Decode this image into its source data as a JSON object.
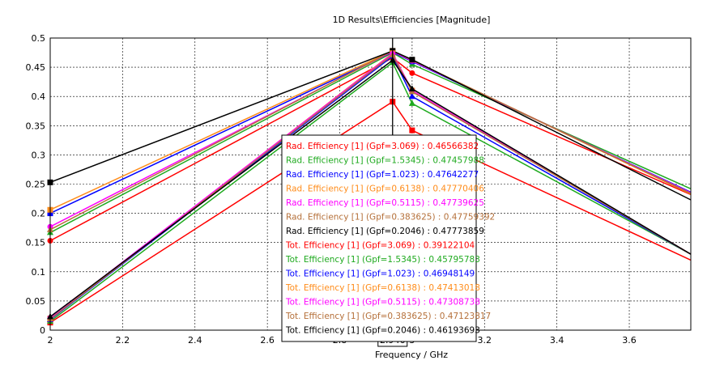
{
  "chart_data": {
    "type": "line",
    "title": "1D Results\\Efficiencies [Magnitude]",
    "xlabel": "Frequency / GHz",
    "ylabel": "",
    "xlim": [
      2,
      3.77
    ],
    "ylim": [
      0,
      0.5
    ],
    "grid": true,
    "x_ticks": [
      "2",
      "2.2",
      "2.4",
      "2.6",
      "2.8",
      "3",
      "3.2",
      "3.4",
      "3.6"
    ],
    "y_ticks": [
      "0",
      "0.05",
      "0.1",
      "0.15",
      "0.2",
      "0.25",
      "0.3",
      "0.35",
      "0.4",
      "0.45",
      "0.5"
    ],
    "marker_x": 2.946,
    "marker_label": "2.946",
    "series": [
      {
        "name": "Rad. Efficiency [1] (Gpf=3.069)",
        "color": "#ff0000",
        "marker": "circle",
        "x": [
          2,
          2.946,
          3,
          3.77
        ],
        "y": [
          0.153,
          0.466,
          0.44,
          0.232
        ],
        "readout": "Rad. Efficiency [1] (Gpf=3.069) : 0.46566382"
      },
      {
        "name": "Rad. Efficiency [1] (Gpf=1.5345)",
        "color": "#1faa1f",
        "marker": "triangle",
        "x": [
          2,
          2.946,
          3,
          3.77
        ],
        "y": [
          0.167,
          0.475,
          0.455,
          0.242
        ],
        "readout": "Rad. Efficiency [1] (Gpf=1.5345) : 0.47457988"
      },
      {
        "name": "Rad. Efficiency [1] (Gpf=1.023)",
        "color": "#0000ff",
        "marker": "square",
        "x": [
          2,
          2.946,
          3,
          3.77
        ],
        "y": [
          0.2,
          0.476,
          0.46,
          0.236
        ],
        "readout": "Rad. Efficiency [1] (Gpf=1.023) : 0.47642277"
      },
      {
        "name": "Rad. Efficiency [1] (Gpf=0.6138)",
        "color": "#ff8c1a",
        "marker": "square",
        "x": [
          2,
          2.946,
          3,
          3.77
        ],
        "y": [
          0.206,
          0.478,
          0.462,
          0.233
        ],
        "readout": "Rad. Efficiency [1] (Gpf=0.6138) : 0.47770406"
      },
      {
        "name": "Rad. Efficiency [1] (Gpf=0.5115)",
        "color": "#ff00ff",
        "marker": "circle",
        "x": [
          2,
          2.946,
          3,
          3.77
        ],
        "y": [
          0.177,
          0.477,
          0.461,
          0.235
        ],
        "readout": "Rad. Efficiency [1] (Gpf=0.5115) : 0.47739625"
      },
      {
        "name": "Rad. Efficiency [1] (Gpf=0.383625)",
        "color": "#b5703a",
        "marker": "triangle",
        "x": [
          2,
          2.946,
          3,
          3.77
        ],
        "y": [
          0.172,
          0.478,
          0.462,
          0.234
        ],
        "readout": "Rad. Efficiency [1] (Gpf=0.383625) : 0.47759392"
      },
      {
        "name": "Rad. Efficiency [1] (Gpf=0.2046)",
        "color": "#000000",
        "marker": "square",
        "x": [
          2,
          2.946,
          3,
          3.77
        ],
        "y": [
          0.253,
          0.478,
          0.463,
          0.223
        ],
        "readout": "Rad. Efficiency [1] (Gpf=0.2046) : 0.47773859"
      },
      {
        "name": "Tot. Efficiency [1] (Gpf=3.069)",
        "color": "#ff0000",
        "marker": "square",
        "x": [
          2,
          2.946,
          3,
          3.77
        ],
        "y": [
          0.013,
          0.391,
          0.342,
          0.12
        ],
        "readout": "Tot. Efficiency [1] (Gpf=3.069) : 0.39122104"
      },
      {
        "name": "Tot. Efficiency [1] (Gpf=1.5345)",
        "color": "#1faa1f",
        "marker": "triangle",
        "x": [
          2,
          2.946,
          3,
          3.77
        ],
        "y": [
          0.015,
          0.458,
          0.388,
          0.13
        ],
        "readout": "Tot. Efficiency [1] (Gpf=1.5345) : 0.45795783"
      },
      {
        "name": "Tot. Efficiency [1] (Gpf=1.023)",
        "color": "#0000ff",
        "marker": "triangle",
        "x": [
          2,
          2.946,
          3,
          3.77
        ],
        "y": [
          0.018,
          0.469,
          0.4,
          0.13
        ],
        "readout": "Tot. Efficiency [1] (Gpf=1.023) : 0.46948149"
      },
      {
        "name": "Tot. Efficiency [1] (Gpf=0.6138)",
        "color": "#ff8c1a",
        "marker": "square",
        "x": [
          2,
          2.946,
          3,
          3.77
        ],
        "y": [
          0.02,
          0.474,
          0.41,
          0.13
        ],
        "readout": "Tot. Efficiency [1] (Gpf=0.6138) : 0.47413018"
      },
      {
        "name": "Tot. Efficiency [1] (Gpf=0.5115)",
        "color": "#ff00ff",
        "marker": "circle",
        "x": [
          2,
          2.946,
          3,
          3.77
        ],
        "y": [
          0.021,
          0.473,
          0.41,
          0.13
        ],
        "readout": "Tot. Efficiency [1] (Gpf=0.5115) : 0.47308738"
      },
      {
        "name": "Tot. Efficiency [1] (Gpf=0.383625)",
        "color": "#b5703a",
        "marker": "triangle",
        "x": [
          2,
          2.946,
          3,
          3.77
        ],
        "y": [
          0.019,
          0.471,
          0.408,
          0.13
        ],
        "readout": "Tot. Efficiency [1] (Gpf=0.383625) : 0.47123817"
      },
      {
        "name": "Tot. Efficiency [1] (Gpf=0.2046)",
        "color": "#000000",
        "marker": "triangle",
        "x": [
          2,
          2.946,
          3,
          3.77
        ],
        "y": [
          0.023,
          0.462,
          0.413,
          0.13
        ],
        "readout": "Tot. Efficiency [1] (Gpf=0.2046) : 0.46193693"
      }
    ]
  }
}
